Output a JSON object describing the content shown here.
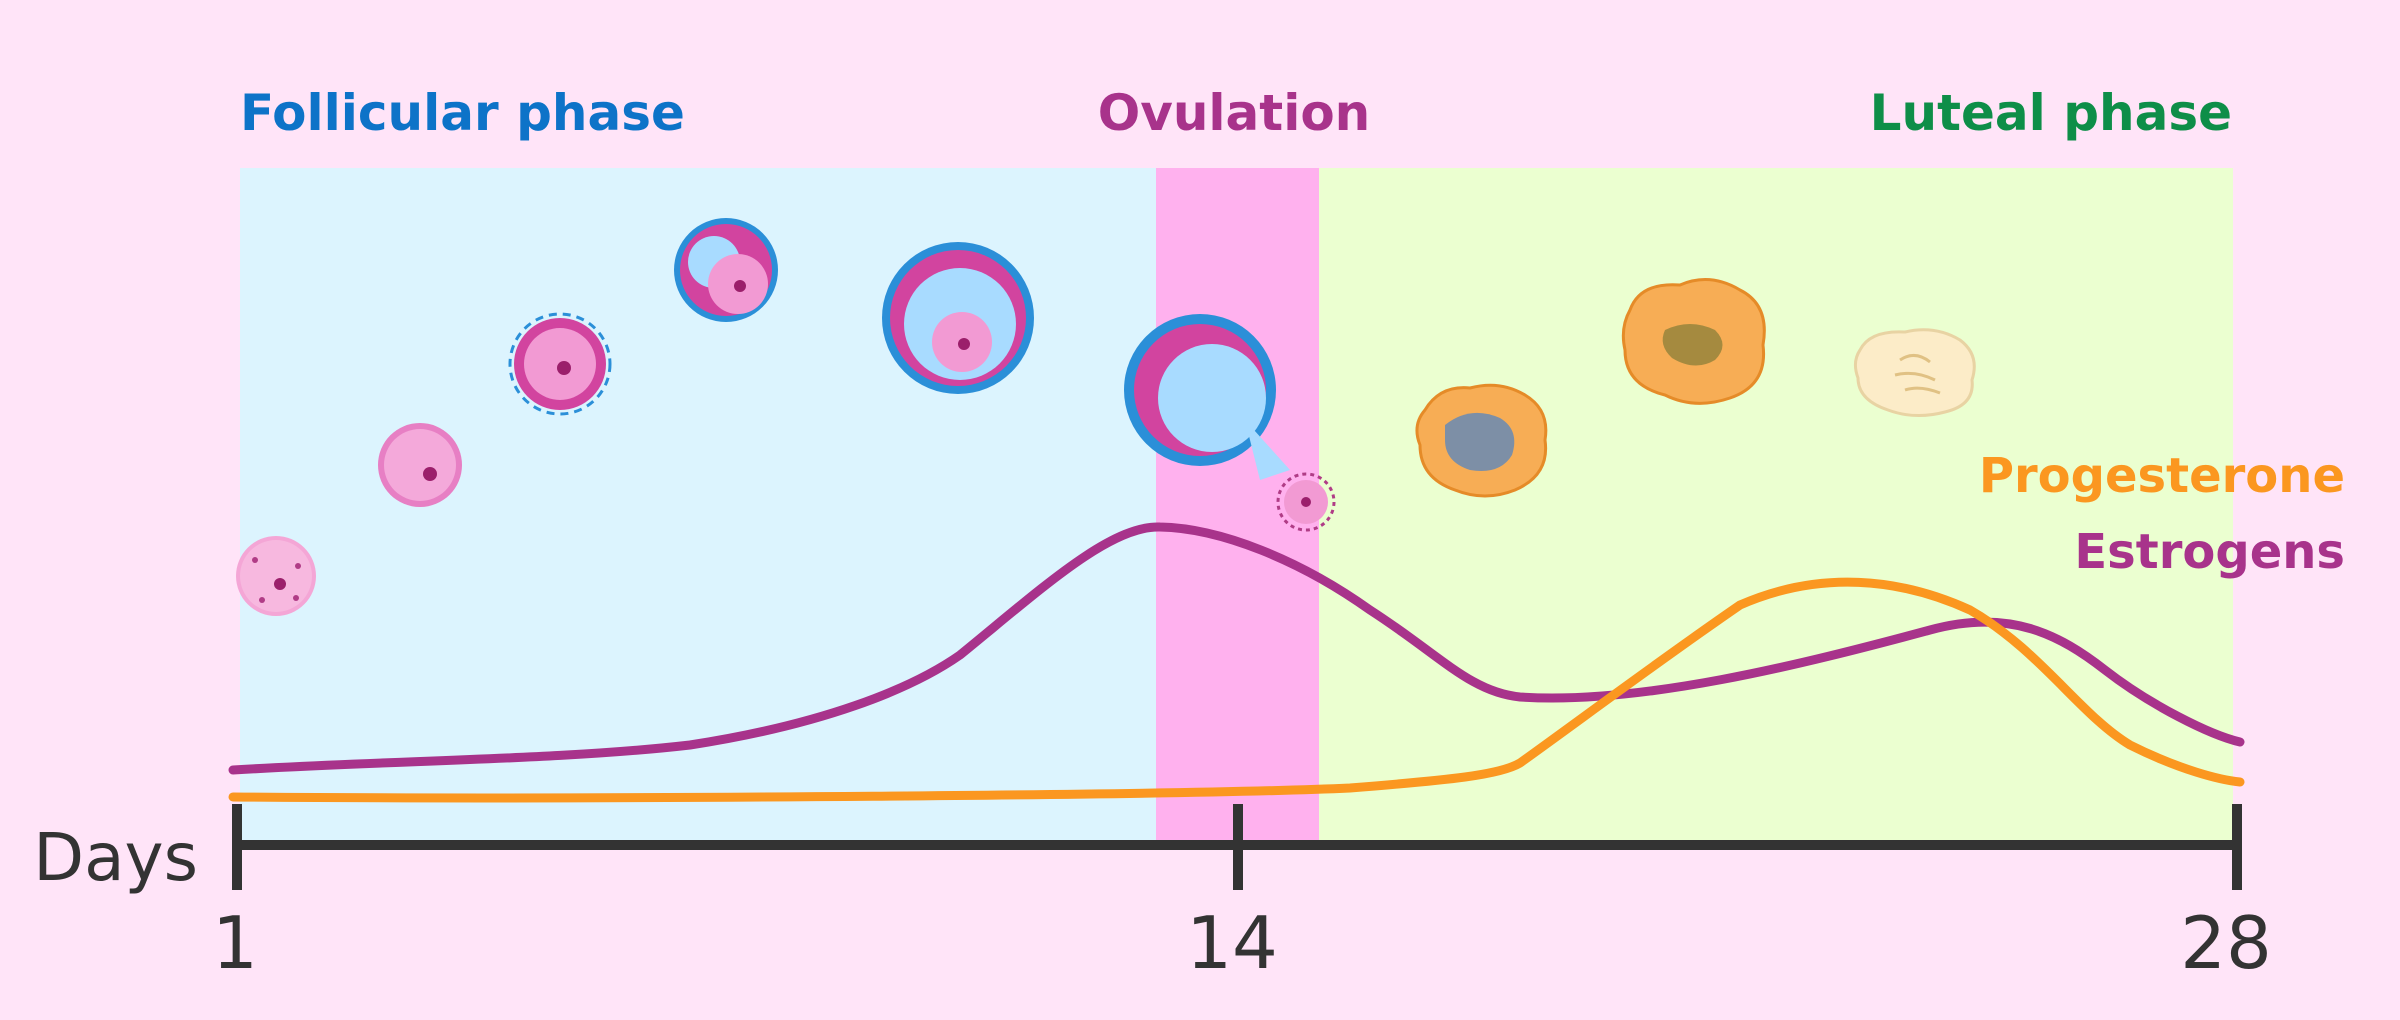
{
  "phases": {
    "follicular": "Follicular phase",
    "ovulation": "Ovulation",
    "luteal": "Luteal phase"
  },
  "legend": {
    "progesterone": "Progesterone",
    "estrogens": "Estrogens"
  },
  "axis": {
    "label": "Days",
    "ticks": [
      "1",
      "14",
      "28"
    ]
  },
  "colors": {
    "background": "#ffe4f8",
    "follicular": "#0d73c8",
    "ovulation": "#a8338b",
    "luteal": "#0e8e48",
    "follicularBand": "#dcf4fe",
    "ovulationBand": "#ffb1ee",
    "lutealBand": "#ebffd0",
    "estrogens": "#a8338b",
    "progesterone": "#fb9720",
    "axis": "#333333"
  },
  "icons": [
    "primordial-follicle-icon",
    "primary-follicle-icon",
    "secondary-follicle-icon",
    "early-antral-follicle-icon",
    "graafian-follicle-icon",
    "ovulating-follicle-icon",
    "released-oocyte-icon",
    "corpus-luteum-early-icon",
    "corpus-luteum-mature-icon",
    "corpus-albicans-icon"
  ]
}
